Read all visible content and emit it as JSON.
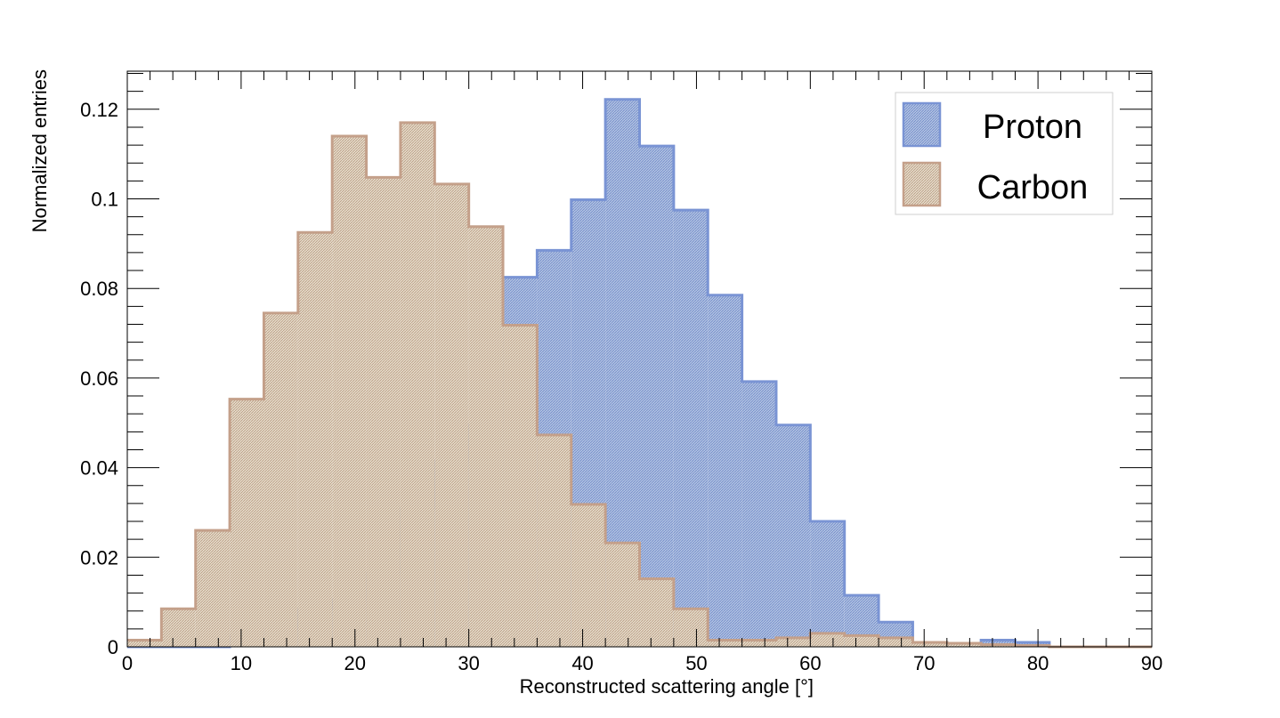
{
  "chart_data": {
    "type": "bar",
    "xlabel": "Reconstructed scattering angle [°]",
    "ylabel": "Normalized entries",
    "xlim": [
      0,
      90
    ],
    "ylim": [
      0,
      0.1285
    ],
    "bin_edges": [
      0,
      3,
      6,
      9,
      12,
      15,
      18,
      21,
      24,
      27,
      30,
      33,
      36,
      39,
      42,
      45,
      48,
      51,
      54,
      57,
      60,
      63,
      66,
      69,
      72,
      75,
      78,
      81,
      84,
      87,
      90
    ],
    "x_ticks": [
      0,
      10,
      20,
      30,
      40,
      50,
      60,
      70,
      80,
      90
    ],
    "x_tick_labels": [
      "0",
      "10",
      "20",
      "30",
      "40",
      "50",
      "60",
      "70",
      "80",
      "90"
    ],
    "y_ticks": [
      0,
      0.02,
      0.04,
      0.06,
      0.08,
      0.1,
      0.12
    ],
    "y_tick_labels": [
      "0",
      "0.02",
      "0.04",
      "0.06",
      "0.08",
      "0.1",
      "0.12"
    ],
    "grid": false,
    "legend_position": "top-right",
    "series": [
      {
        "name": "Proton",
        "color": "#7a94d4",
        "fill": "#a6b9dd",
        "values": [
          0,
          0,
          0,
          0.0025,
          0.004,
          0.0085,
          0.0105,
          0.0165,
          0.031,
          0.0415,
          0.0495,
          0.0825,
          0.0885,
          0.0998,
          0.1222,
          0.1118,
          0.0975,
          0.0785,
          0.0592,
          0.0495,
          0.028,
          0.0115,
          0.0055,
          0.001,
          0.0005,
          0.0015,
          0.001,
          0,
          0,
          0
        ]
      },
      {
        "name": "Carbon",
        "color": "#c4a08a",
        "fill": "#ddd0bc",
        "values": [
          0.0015,
          0.0085,
          0.026,
          0.0553,
          0.0745,
          0.0925,
          0.114,
          0.1048,
          0.117,
          0.1033,
          0.0938,
          0.0718,
          0.0473,
          0.0318,
          0.0232,
          0.0152,
          0.0085,
          0.0015,
          0.0015,
          0.002,
          0.003,
          0.0025,
          0.002,
          0.001,
          0.0008,
          0.0005,
          0.0003,
          0,
          0,
          0
        ]
      }
    ]
  }
}
